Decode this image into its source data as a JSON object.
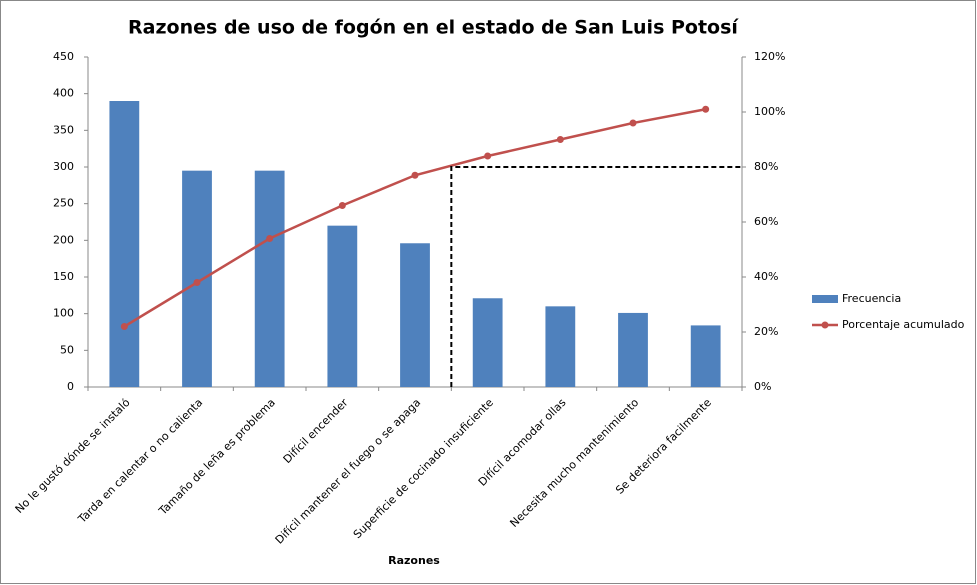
{
  "chart_data": {
    "type": "pareto",
    "title": "Razones de uso de fogón en el estado de San Luis Potosí",
    "x_label": "Razones",
    "categories": [
      "No le gustó dónde se instaló",
      "Tarda en calentar o no calienta",
      "Tamaño de leña es problema",
      "Difícil encender",
      "Difícil mantener el fuego o se apaga",
      "Superficie de cocinado insuficiente",
      "Difícil acomodar ollas",
      "Necesita mucho mantenimiento",
      "Se deteriora facilmente"
    ],
    "series": [
      {
        "name": "Frecuencia",
        "type": "bar",
        "color": "#4f81bd",
        "values": [
          390,
          295,
          295,
          220,
          196,
          121,
          110,
          101,
          84
        ]
      },
      {
        "name": "Porcentaje acumulado",
        "type": "line",
        "axis": "y2",
        "color": "#c0504d",
        "values": [
          22,
          38,
          54,
          66,
          77,
          84,
          90,
          96,
          101
        ]
      }
    ],
    "ylim": [
      0,
      450
    ],
    "yticks": [
      0,
      50,
      100,
      150,
      200,
      250,
      300,
      350,
      400,
      450
    ],
    "y2lim": [
      0,
      120
    ],
    "y2ticks": [
      {
        "value": 0,
        "label": "0%"
      },
      {
        "value": 20,
        "label": "20%"
      },
      {
        "value": 40,
        "label": "40%"
      },
      {
        "value": 60,
        "label": "60%"
      },
      {
        "value": 80,
        "label": "80%"
      },
      {
        "value": 100,
        "label": "100%"
      },
      {
        "value": 120,
        "label": "120%"
      }
    ],
    "reference_line": {
      "value": 80,
      "axis": "y2"
    },
    "legend": "right"
  }
}
